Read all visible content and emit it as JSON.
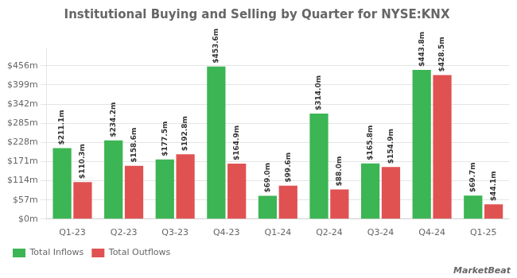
{
  "chart_data": {
    "type": "bar",
    "title": "Institutional Buying and Selling by Quarter for NYSE:KNX",
    "categories": [
      "Q1-23",
      "Q2-23",
      "Q3-23",
      "Q4-23",
      "Q1-24",
      "Q2-24",
      "Q3-24",
      "Q4-24",
      "Q1-25"
    ],
    "series": [
      {
        "name": "Total Inflows",
        "color": "#3cb554",
        "values": [
          211.1,
          234.2,
          177.5,
          453.6,
          69.0,
          314.0,
          165.8,
          443.8,
          69.7
        ],
        "value_labels": [
          "$211.1m",
          "$234.2m",
          "$177.5m",
          "$453.6m",
          "$69.0m",
          "$314.0m",
          "$165.8m",
          "$443.8m",
          "$69.7m"
        ]
      },
      {
        "name": "Total Outflows",
        "color": "#e05252",
        "values": [
          110.3,
          158.6,
          192.8,
          164.9,
          99.6,
          88.0,
          154.9,
          428.5,
          44.1
        ],
        "value_labels": [
          "$110.3m",
          "$158.6m",
          "$192.8m",
          "$164.9m",
          "$99.6m",
          "$88.0m",
          "$154.9m",
          "$428.5m",
          "$44.1m"
        ]
      }
    ],
    "ylim": [
      0,
      510
    ],
    "yticks": [
      {
        "value": 0,
        "label": "$0m"
      },
      {
        "value": 57,
        "label": "$57m"
      },
      {
        "value": 114,
        "label": "$114m"
      },
      {
        "value": 171,
        "label": "$171m"
      },
      {
        "value": 228,
        "label": "$228m"
      },
      {
        "value": 285,
        "label": "$285m"
      },
      {
        "value": 342,
        "label": "$342m"
      },
      {
        "value": 399,
        "label": "$399m"
      },
      {
        "value": 456,
        "label": "$456m"
      }
    ],
    "grid": true,
    "legend": "lower left",
    "data_labels": true,
    "annotations": [
      "MarketBeat"
    ]
  }
}
